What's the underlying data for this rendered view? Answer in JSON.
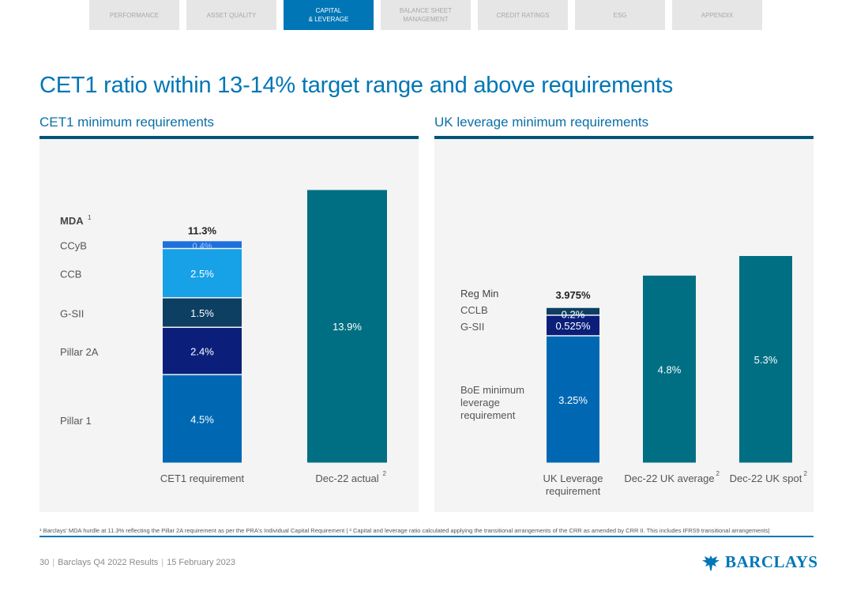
{
  "nav": {
    "tabs": [
      {
        "label": "PERFORMANCE",
        "active": false
      },
      {
        "label": "ASSET QUALITY",
        "active": false
      },
      {
        "label": "CAPITAL\n& LEVERAGE",
        "active": true
      },
      {
        "label": "BALANCE SHEET\nMANAGEMENT",
        "active": false
      },
      {
        "label": "CREDIT RATINGS",
        "active": false
      },
      {
        "label": "ESG",
        "active": false
      },
      {
        "label": "APPENDIX",
        "active": false
      }
    ]
  },
  "page": {
    "title": "CET1 ratio within 13-14% target range and above requirements"
  },
  "colors": {
    "brand": "#0076b6",
    "pillar1": "#0068b3",
    "pillar2a": "#0b1f7a",
    "gsii": "#0d3f63",
    "ccb": "#17a1e6",
    "ccyb": "#1f6fdc",
    "actual": "#006f83"
  },
  "chart_data": [
    {
      "type": "bar",
      "title": "CET1 minimum requirements",
      "categories": [
        "CET1 requirement",
        "Dec-22 actual"
      ],
      "category_superscripts": [
        "",
        "2"
      ],
      "stack_label": "MDA",
      "stack_label_superscript": "1",
      "series": [
        {
          "name": "Pillar 1",
          "values": [
            4.5,
            null
          ],
          "labels": [
            "4.5%",
            ""
          ]
        },
        {
          "name": "Pillar 2A",
          "values": [
            2.4,
            null
          ],
          "labels": [
            "2.4%",
            ""
          ]
        },
        {
          "name": "G-SII",
          "values": [
            1.5,
            null
          ],
          "labels": [
            "1.5%",
            ""
          ]
        },
        {
          "name": "CCB",
          "values": [
            2.5,
            null
          ],
          "labels": [
            "2.5%",
            ""
          ]
        },
        {
          "name": "CCyB",
          "values": [
            0.4,
            null
          ],
          "labels": [
            "0.4%",
            ""
          ]
        },
        {
          "name": "Actual",
          "values": [
            null,
            13.9
          ],
          "labels": [
            "",
            "13.9%"
          ]
        }
      ],
      "totals": [
        "11.3%",
        ""
      ],
      "ylim": [
        0,
        14
      ]
    },
    {
      "type": "bar",
      "title": "UK leverage minimum requirements",
      "categories": [
        "UK Leverage requirement",
        "Dec-22 UK average",
        "Dec-22 UK spot"
      ],
      "category_superscripts": [
        "",
        "2",
        "2"
      ],
      "stack_label": "Reg Min",
      "series": [
        {
          "name": "BoE minimum leverage requirement",
          "values": [
            3.25,
            null,
            null
          ],
          "labels": [
            "3.25%",
            "",
            ""
          ]
        },
        {
          "name": "G-SII",
          "values": [
            0.525,
            null,
            null
          ],
          "labels": [
            "0.525%",
            "",
            ""
          ]
        },
        {
          "name": "CCLB",
          "values": [
            0.2,
            null,
            null
          ],
          "labels": [
            "0.2%",
            "",
            ""
          ]
        },
        {
          "name": "Actual",
          "values": [
            null,
            4.8,
            5.3
          ],
          "labels": [
            "",
            "4.8%",
            "5.3%"
          ]
        }
      ],
      "totals": [
        "3.975%",
        "",
        ""
      ],
      "ylim": [
        0,
        5.3
      ]
    }
  ],
  "footnote": "¹ Barclays' MDA hurdle at 11.3% reflecting the Pillar 2A requirement as per the PRA's Individual Capital Requirement | ² Capital and leverage ratio calculated applying the transitional arrangements of the CRR as amended by CRR II. This includes IFRS9 transitional arrangements|",
  "footer": {
    "page_number": "30",
    "doc_name": "Barclays Q4 2022 Results",
    "date": "15 February 2023",
    "logo_text": "BARCLAYS",
    "logo_icon": "eagle-icon"
  }
}
